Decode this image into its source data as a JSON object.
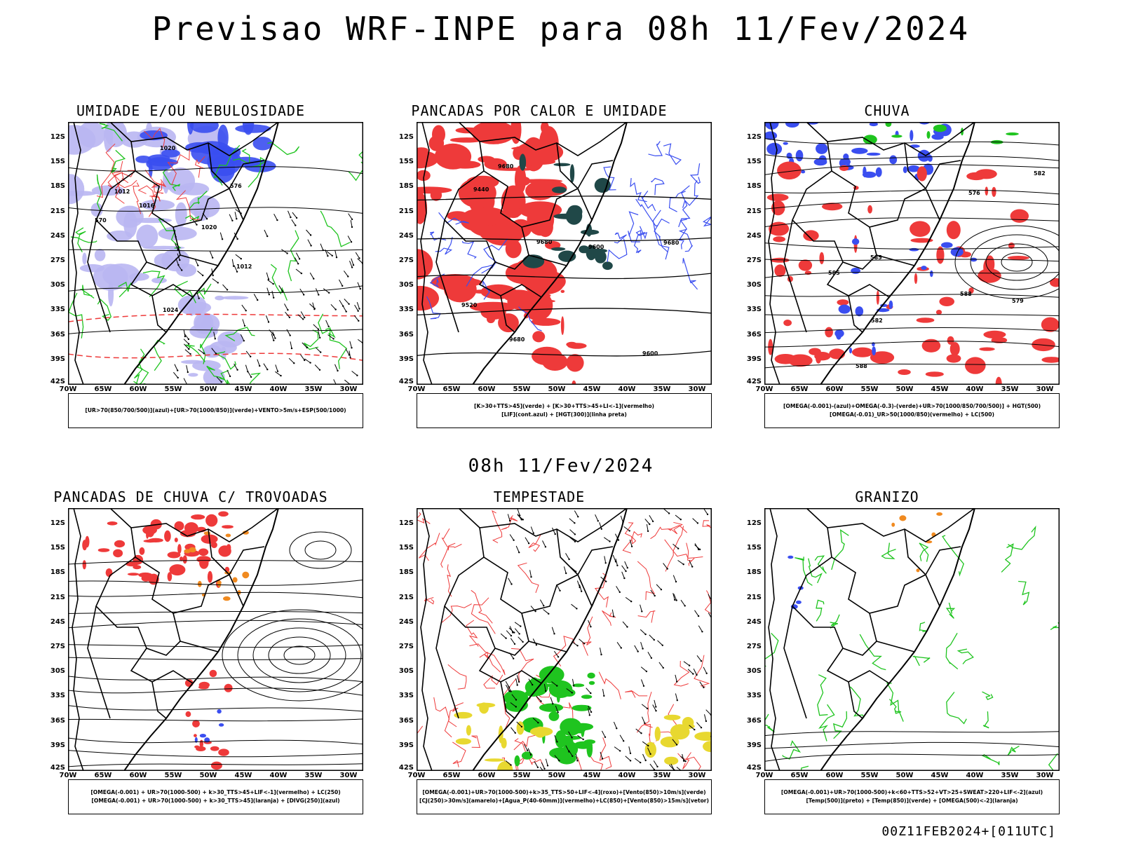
{
  "header": {
    "title": "Previsao WRF-INPE  para 08h 11/Fev/2024"
  },
  "middle": {
    "title": "08h 11/Fev/2024"
  },
  "footer": {
    "run_info": "00Z11FEB2024+[011UTC]"
  },
  "axes": {
    "lat_labels": [
      "12S",
      "15S",
      "18S",
      "21S",
      "24S",
      "27S",
      "30S",
      "33S",
      "36S",
      "39S",
      "42S"
    ],
    "lon_labels": [
      "70W",
      "65W",
      "60W",
      "55W",
      "50W",
      "45W",
      "40W",
      "35W",
      "30W"
    ]
  },
  "colors": {
    "blue": "#3a4ef0",
    "lightblue": "#b9b6f2",
    "green": "#1fc41f",
    "red": "#ee3a3a",
    "darkteal": "#204848",
    "orange": "#f08a20",
    "yellow": "#e8d830",
    "black": "#000000"
  },
  "panels": [
    {
      "id": "umidade",
      "title": "UMIDADE E/OU NEBULOSIDADE",
      "legend": [
        "[UR>70(850/700/500)](azul)+[UR>70(1000/850)](verde)+VENTO>5m/s+ESP(500/1000)"
      ],
      "contour_labels": [
        "1016",
        "1012",
        "1020",
        "1020",
        "1024",
        "576",
        "570",
        "1012"
      ]
    },
    {
      "id": "pancadas-calor",
      "title": "PANCADAS POR CALOR E UMIDADE",
      "legend": [
        "[K>30+TTS>45](verde) + [K>30+TTS>45+LI<-1](vermelho)",
        "[LIF](cont.azul) + [HGT(300)](linha preta)"
      ],
      "contour_labels": [
        "9680",
        "9680",
        "9680",
        "9600",
        "9520",
        "9440",
        "9600",
        "9680"
      ]
    },
    {
      "id": "chuva",
      "title": "CHUVA",
      "legend": [
        "[OMEGA(-0.001)-(azul)+OMEGA(-0.3)-(verde)+UR>70(1000/850/700/500)] + HGT(500)",
        "[OMEGA(-0.01)_UR>50(1000/850)(vermelho) + LC(500)"
      ],
      "contour_labels": [
        "588",
        "588",
        "585",
        "582",
        "579",
        "576",
        "585",
        "582"
      ]
    },
    {
      "id": "trovoadas",
      "title": "PANCADAS DE CHUVA C/ TROVOADAS",
      "legend": [
        "[OMEGA(-0.001) + UR>70(1000-500) + k>30_TTS>45+LIF<-1](vermelho) + LC(250)",
        "[OMEGA(-0.001) + UR>70(1000-500) + k>30_TTS>45](laranja) + [DIVG(250)](azul)"
      ],
      "contour_labels": []
    },
    {
      "id": "tempestade",
      "title": "TEMPESTADE",
      "legend": [
        "[OMEGA(-0.001)+UR>70(1000-500)+k>35_TTS>50+LIF<-4](roxo)+[Vento(850)>10m/s](verde)",
        "[CJ(250)>30m/s](amarelo)+[Agua_P(40-60mm)](vermelho)+LC(850)+[Vento(850)>15m/s](vetor)"
      ],
      "contour_labels": []
    },
    {
      "id": "granizo",
      "title": "GRANIZO",
      "legend": [
        "[OMEGA(-0.001)+UR>70(1000-500)+k<60+TTS>52+VT>25+SWEAT>220+LIF<-2](azul)",
        "[Temp(500)](preto) + [Temp(850)](verde) + [OMEGA(500)<-2](laranja)"
      ],
      "contour_labels": []
    }
  ]
}
